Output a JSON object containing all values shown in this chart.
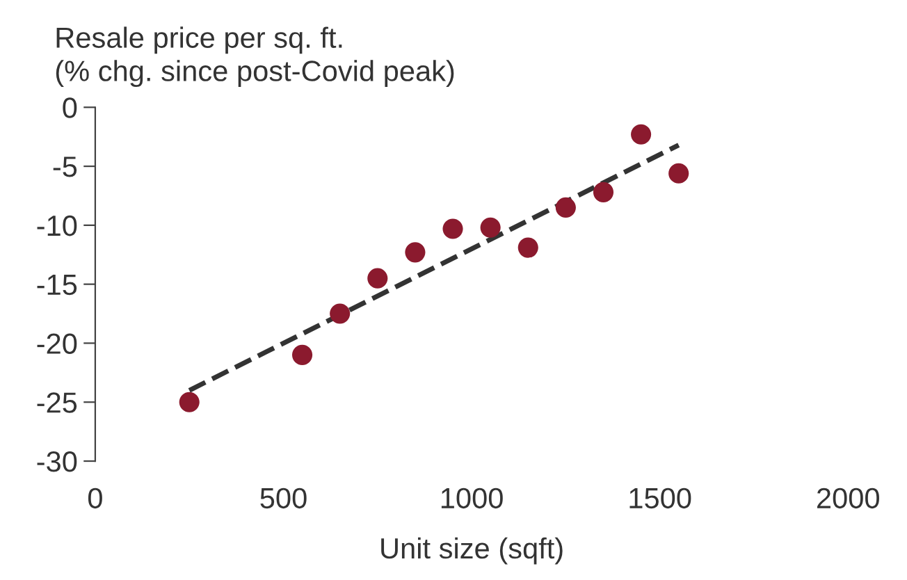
{
  "chart_data": {
    "type": "scatter",
    "ylabel": "Resale price per sq. ft.\n(% chg. since post-Covid peak)",
    "xlabel": "Unit size (sqft)",
    "x": [
      250,
      550,
      650,
      750,
      850,
      950,
      1050,
      1150,
      1250,
      1350,
      1450,
      1550
    ],
    "series": [
      {
        "color": "#8b1a2e",
        "values": [
          -25,
          -21,
          -17.5,
          -14.5,
          -12.3,
          -10.3,
          -10.2,
          -11.9,
          -8.5,
          -7.2,
          -2.3,
          -5.6
        ],
        "marker": "circle"
      },
      {
        "type": "line",
        "color": "#333333",
        "x": [
          250,
          1550
        ],
        "values": [
          -24,
          -3.2
        ],
        "line_style": "dashed",
        "marker": "none"
      }
    ],
    "xlim": [
      0,
      2000
    ],
    "xticks": [
      0,
      500,
      1000,
      1500,
      2000
    ],
    "ylim": [
      -30,
      0
    ],
    "yticks": [
      -30,
      -25,
      -20,
      -15,
      -10,
      -5,
      0
    ],
    "grid": false,
    "legend": false
  }
}
